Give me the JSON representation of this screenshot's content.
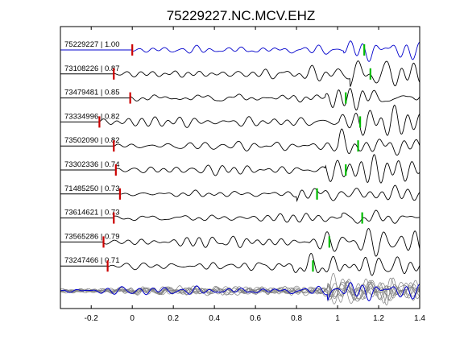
{
  "chart_data": {
    "type": "line",
    "title": "75229227.NC.MCV.EHZ",
    "xlabel": "",
    "ylabel": "",
    "xlim": [
      -0.35,
      1.4
    ],
    "x_ticks": [
      -0.2,
      0,
      0.2,
      0.4,
      0.6,
      0.8,
      1,
      1.2,
      1.4
    ],
    "x_tick_labels": [
      "-0.2",
      "0",
      "0.2",
      "0.4",
      "0.6",
      "0.8",
      "1",
      "1.2",
      "1.4"
    ],
    "grid": false,
    "colors": {
      "reference": "#0000cc",
      "trace": "#000000",
      "stack": "#808080",
      "p_pick": "#cc0000",
      "s_pick": "#00bb00"
    },
    "series": [
      {
        "label": "75229227 | 1.00",
        "p_pick": 0.0,
        "s_pick": 1.13,
        "color": "reference"
      },
      {
        "label": "73108226 | 0.87",
        "p_pick": -0.09,
        "s_pick": 1.16,
        "color": "trace"
      },
      {
        "label": "73479481 | 0.85",
        "p_pick": -0.01,
        "s_pick": 1.04,
        "color": "trace"
      },
      {
        "label": "73334996 | 0.82",
        "p_pick": -0.16,
        "s_pick": 1.11,
        "color": "trace"
      },
      {
        "label": "73502090 | 0.82",
        "p_pick": -0.09,
        "s_pick": 1.1,
        "color": "trace"
      },
      {
        "label": "73302336 | 0.74",
        "p_pick": -0.08,
        "s_pick": 1.04,
        "color": "trace"
      },
      {
        "label": "71485250 | 0.73",
        "p_pick": -0.06,
        "s_pick": 0.9,
        "color": "trace"
      },
      {
        "label": "73614621 | 0.73",
        "p_pick": -0.09,
        "s_pick": 1.12,
        "color": "trace"
      },
      {
        "label": "73565286 | 0.79",
        "p_pick": -0.14,
        "s_pick": 0.96,
        "color": "trace"
      },
      {
        "label": "73247466 | 0.71",
        "p_pick": -0.12,
        "s_pick": 0.88,
        "color": "trace"
      }
    ]
  }
}
